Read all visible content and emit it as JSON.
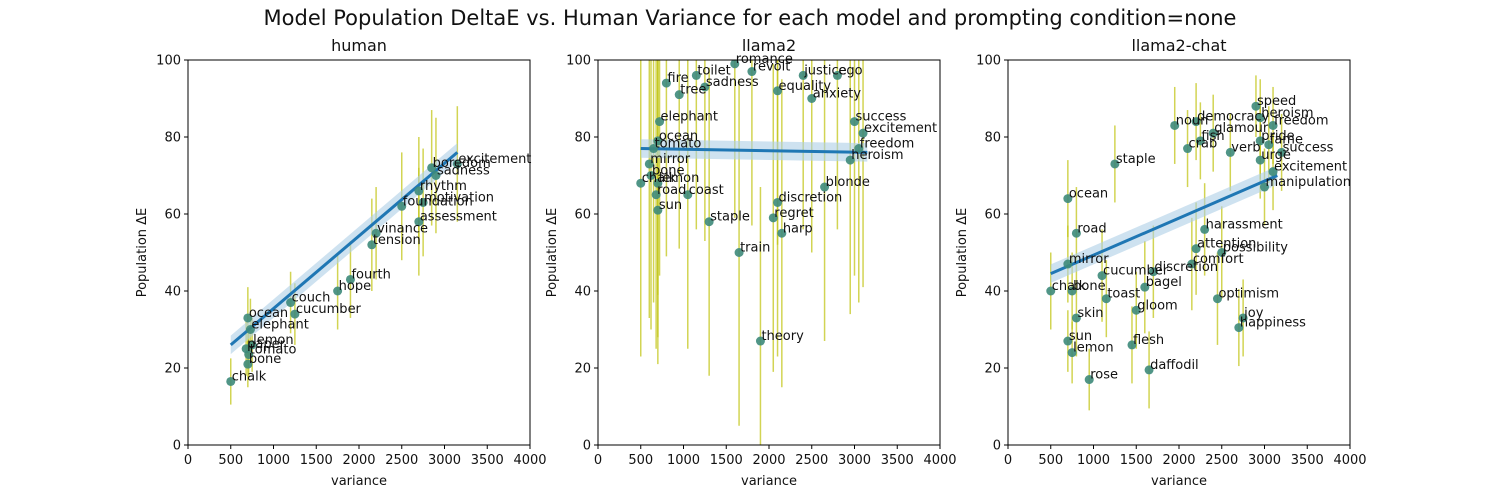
{
  "suptitle": "Model Population DeltaE vs. Human Variance for each model and prompting condition=none",
  "colors": {
    "point": "#3d8a7a",
    "errorbar": "#c3c51a",
    "fit": "#1f77b4",
    "band": "#aecfe6"
  },
  "chart_data": [
    {
      "type": "scatter",
      "title": "human",
      "xlabel": "variance",
      "ylabel": "Population ΔE",
      "xlim": [
        0,
        4000
      ],
      "ylim": [
        0,
        100
      ],
      "xticks": [
        0,
        500,
        1000,
        1500,
        2000,
        2500,
        3000,
        3500,
        4000
      ],
      "yticks": [
        0,
        20,
        40,
        60,
        80,
        100
      ],
      "fit": {
        "x": [
          500,
          3150
        ],
        "y": [
          26,
          76
        ]
      },
      "points": [
        {
          "label": "chalk",
          "x": 500,
          "y": 16.5,
          "err": 6
        },
        {
          "label": "bone",
          "x": 700,
          "y": 21,
          "err": 6
        },
        {
          "label": "tomato",
          "x": 710,
          "y": 23.5,
          "err": 6
        },
        {
          "label": "paper",
          "x": 680,
          "y": 25,
          "err": 7
        },
        {
          "label": "lemon",
          "x": 750,
          "y": 26,
          "err": 7
        },
        {
          "label": "elephant",
          "x": 730,
          "y": 30,
          "err": 8
        },
        {
          "label": "ocean",
          "x": 700,
          "y": 33,
          "err": 8
        },
        {
          "label": "cucumber",
          "x": 1250,
          "y": 34,
          "err": 8
        },
        {
          "label": "couch",
          "x": 1200,
          "y": 37,
          "err": 8
        },
        {
          "label": "hope",
          "x": 1750,
          "y": 40,
          "err": 10
        },
        {
          "label": "fourth",
          "x": 1900,
          "y": 43,
          "err": 10
        },
        {
          "label": "tension",
          "x": 2150,
          "y": 52,
          "err": 12
        },
        {
          "label": "vinance",
          "x": 2200,
          "y": 55,
          "err": 12
        },
        {
          "label": "assessment",
          "x": 2700,
          "y": 58,
          "err": 14
        },
        {
          "label": "foundation",
          "x": 2500,
          "y": 62,
          "err": 14
        },
        {
          "label": "motivation",
          "x": 2750,
          "y": 63,
          "err": 14
        },
        {
          "label": "rhythm",
          "x": 2700,
          "y": 66,
          "err": 14
        },
        {
          "label": "sadness",
          "x": 2900,
          "y": 70,
          "err": 15
        },
        {
          "label": "boredom",
          "x": 2850,
          "y": 72,
          "err": 15
        },
        {
          "label": "excitement",
          "x": 3150,
          "y": 73,
          "err": 15
        }
      ]
    },
    {
      "type": "scatter",
      "title": "llama2",
      "xlabel": "variance",
      "ylabel": "Population ΔE",
      "xlim": [
        0,
        4000
      ],
      "ylim": [
        0,
        100
      ],
      "xticks": [
        0,
        500,
        1000,
        1500,
        2000,
        2500,
        3000,
        3500,
        4000
      ],
      "yticks": [
        0,
        20,
        40,
        60,
        80,
        100
      ],
      "fit": {
        "x": [
          500,
          3150
        ],
        "y": [
          77,
          76
        ]
      },
      "points": [
        {
          "label": "romance",
          "x": 1600,
          "y": 99,
          "err": 40
        },
        {
          "label": "revolt",
          "x": 1800,
          "y": 97,
          "err": 40
        },
        {
          "label": "justice",
          "x": 2400,
          "y": 96,
          "err": 40
        },
        {
          "label": "ego",
          "x": 2800,
          "y": 96,
          "err": 40
        },
        {
          "label": "toilet",
          "x": 1150,
          "y": 96,
          "err": 40
        },
        {
          "label": "fire",
          "x": 800,
          "y": 94,
          "err": 45
        },
        {
          "label": "sadness",
          "x": 1250,
          "y": 93,
          "err": 40
        },
        {
          "label": "tree",
          "x": 950,
          "y": 91,
          "err": 40
        },
        {
          "label": "equality",
          "x": 2100,
          "y": 92,
          "err": 40
        },
        {
          "label": "anxiety",
          "x": 2500,
          "y": 90,
          "err": 40
        },
        {
          "label": "elephant",
          "x": 720,
          "y": 84,
          "err": 40
        },
        {
          "label": "success",
          "x": 3000,
          "y": 84,
          "err": 40
        },
        {
          "label": "excitement",
          "x": 3100,
          "y": 81,
          "err": 40
        },
        {
          "label": "ocean",
          "x": 700,
          "y": 79,
          "err": 40
        },
        {
          "label": "freedom",
          "x": 3050,
          "y": 77,
          "err": 40
        },
        {
          "label": "tomato",
          "x": 650,
          "y": 77,
          "err": 40
        },
        {
          "label": "heroism",
          "x": 2950,
          "y": 74,
          "err": 40
        },
        {
          "label": "mirror",
          "x": 600,
          "y": 73,
          "err": 40
        },
        {
          "label": "bone",
          "x": 620,
          "y": 70,
          "err": 40
        },
        {
          "label": "chalk",
          "x": 500,
          "y": 68,
          "err": 45
        },
        {
          "label": "lemon",
          "x": 700,
          "y": 68,
          "err": 40
        },
        {
          "label": "blonde",
          "x": 2650,
          "y": 67,
          "err": 40
        },
        {
          "label": "road",
          "x": 680,
          "y": 65,
          "err": 40
        },
        {
          "label": "coast",
          "x": 1050,
          "y": 65,
          "err": 40
        },
        {
          "label": "discretion",
          "x": 2100,
          "y": 63,
          "err": 40
        },
        {
          "label": "sun",
          "x": 700,
          "y": 61,
          "err": 40
        },
        {
          "label": "regret",
          "x": 2050,
          "y": 59,
          "err": 40
        },
        {
          "label": "staple",
          "x": 1300,
          "y": 58,
          "err": 40
        },
        {
          "label": "harp",
          "x": 2150,
          "y": 55,
          "err": 40
        },
        {
          "label": "train",
          "x": 1650,
          "y": 50,
          "err": 45
        },
        {
          "label": "theory",
          "x": 1900,
          "y": 27,
          "err": 40
        }
      ]
    },
    {
      "type": "scatter",
      "title": "llama2-chat",
      "xlabel": "variance",
      "ylabel": "Population ΔE",
      "xlim": [
        0,
        4000
      ],
      "ylim": [
        0,
        100
      ],
      "xticks": [
        0,
        500,
        1000,
        1500,
        2000,
        2500,
        3000,
        3500,
        4000
      ],
      "yticks": [
        0,
        20,
        40,
        60,
        80,
        100
      ],
      "fit": {
        "x": [
          500,
          3150
        ],
        "y": [
          44.5,
          70
        ]
      },
      "points": [
        {
          "label": "speed",
          "x": 2900,
          "y": 88,
          "err": 8
        },
        {
          "label": "heroism",
          "x": 2950,
          "y": 85,
          "err": 10
        },
        {
          "label": "democracy",
          "x": 2200,
          "y": 84,
          "err": 10
        },
        {
          "label": "noun",
          "x": 1950,
          "y": 83,
          "err": 10
        },
        {
          "label": "freedom",
          "x": 3100,
          "y": 83,
          "err": 10
        },
        {
          "label": "glamour",
          "x": 2400,
          "y": 81,
          "err": 10
        },
        {
          "label": "fish",
          "x": 2250,
          "y": 79,
          "err": 10
        },
        {
          "label": "pride",
          "x": 2950,
          "y": 79,
          "err": 10
        },
        {
          "label": "fame",
          "x": 3050,
          "y": 78,
          "err": 10
        },
        {
          "label": "crab",
          "x": 2100,
          "y": 77,
          "err": 10
        },
        {
          "label": "success",
          "x": 3200,
          "y": 76,
          "err": 10
        },
        {
          "label": "verb",
          "x": 2600,
          "y": 76,
          "err": 10
        },
        {
          "label": "urge",
          "x": 2950,
          "y": 74,
          "err": 10
        },
        {
          "label": "staple",
          "x": 1250,
          "y": 73,
          "err": 10
        },
        {
          "label": "excitement",
          "x": 3100,
          "y": 71,
          "err": 10
        },
        {
          "label": "manipulation",
          "x": 3000,
          "y": 67,
          "err": 10
        },
        {
          "label": "ocean",
          "x": 700,
          "y": 64,
          "err": 10
        },
        {
          "label": "harassment",
          "x": 2300,
          "y": 56,
          "err": 12
        },
        {
          "label": "road",
          "x": 800,
          "y": 55,
          "err": 12
        },
        {
          "label": "attention",
          "x": 2200,
          "y": 51,
          "err": 12
        },
        {
          "label": "possibility",
          "x": 2500,
          "y": 50,
          "err": 12
        },
        {
          "label": "comfort",
          "x": 2150,
          "y": 47,
          "err": 12
        },
        {
          "label": "discretion",
          "x": 1700,
          "y": 45,
          "err": 12
        },
        {
          "label": "mirror",
          "x": 700,
          "y": 47,
          "err": 10
        },
        {
          "label": "cucumber",
          "x": 1100,
          "y": 44,
          "err": 12
        },
        {
          "label": "bagel",
          "x": 1600,
          "y": 41,
          "err": 12
        },
        {
          "label": "optimism",
          "x": 2450,
          "y": 38,
          "err": 12
        },
        {
          "label": "chalk",
          "x": 500,
          "y": 40,
          "err": 10
        },
        {
          "label": "bone",
          "x": 750,
          "y": 40,
          "err": 10
        },
        {
          "label": "toast",
          "x": 1150,
          "y": 38,
          "err": 10
        },
        {
          "label": "gloom",
          "x": 1500,
          "y": 35,
          "err": 10
        },
        {
          "label": "skin",
          "x": 800,
          "y": 33,
          "err": 10
        },
        {
          "label": "joy",
          "x": 2750,
          "y": 33,
          "err": 10
        },
        {
          "label": "happiness",
          "x": 2700,
          "y": 30.5,
          "err": 10
        },
        {
          "label": "sun",
          "x": 700,
          "y": 27,
          "err": 8
        },
        {
          "label": "flesh",
          "x": 1450,
          "y": 26,
          "err": 10
        },
        {
          "label": "lemon",
          "x": 750,
          "y": 24,
          "err": 8
        },
        {
          "label": "daffodil",
          "x": 1650,
          "y": 19.5,
          "err": 10
        },
        {
          "label": "rose",
          "x": 950,
          "y": 17,
          "err": 8
        }
      ]
    }
  ]
}
